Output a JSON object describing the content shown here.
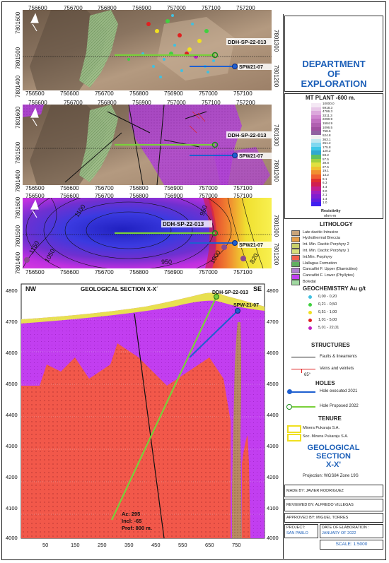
{
  "map1": {
    "top_ticks": [
      "756600",
      "756700",
      "756800",
      "756900",
      "757000",
      "757100",
      "757200"
    ],
    "bottom_ticks": [
      "756500",
      "756600",
      "756700",
      "756800",
      "756900",
      "757000",
      "757100"
    ],
    "left_ticks": [
      "7801600",
      "7801500",
      "7801400"
    ],
    "right_ticks": [
      "7801300",
      "7801200"
    ],
    "hole1_label": "DDH-SP-22-013",
    "hole2_label": "SPW21-07"
  },
  "map2": {
    "top_ticks": [
      "756600",
      "756700",
      "756800",
      "756900",
      "757000",
      "757100",
      "757200"
    ],
    "bottom_ticks": [
      "756500",
      "756600",
      "756700",
      "756800",
      "756900",
      "757000",
      "757100"
    ],
    "left_ticks": [
      "7801600",
      "7801500",
      "7801400"
    ],
    "right_ticks": [
      "7801300",
      "7801200"
    ],
    "hole1_label": "DDH-SP-22-013",
    "hole2_label": "SPW21-07"
  },
  "map3": {
    "top_ticks": [
      "756500",
      "756600",
      "756700",
      "756800",
      "756900",
      "757000",
      "757100"
    ],
    "bottom_ticks": [
      "756500",
      "756600",
      "756700",
      "756800",
      "756900",
      "757000",
      "757100"
    ],
    "left_ticks": [
      "7801600",
      "7801500",
      "7801400"
    ],
    "right_ticks": [
      "7801300",
      "7801200"
    ],
    "hole1_label": "DDH-SP-22-013",
    "hole2_label": "SPW21-07",
    "contour_labels": [
      "1150",
      "1100",
      "1050",
      "950",
      "1000",
      "950",
      "820"
    ]
  },
  "section": {
    "title": "GEOLOGICAL SECTION X-X´",
    "left_label": "NW",
    "right_label": "SE",
    "hole1_label": "DDH-SP-22-013",
    "hole2_label": "SPW-21-07",
    "y_ticks": [
      "4800",
      "4700",
      "4600",
      "4500",
      "4400",
      "4300",
      "4200",
      "4100",
      "4000"
    ],
    "x_ticks": [
      "50",
      "150",
      "250",
      "350",
      "450",
      "550",
      "650",
      "750"
    ],
    "annot_az": "Az: 295",
    "annot_incl": "Incl: -65",
    "annot_prof": "Prof: 800 m."
  },
  "legend": {
    "dept_line1": "DEPARTMENT",
    "dept_line2": "OF",
    "dept_line3": "EXPLORATION",
    "mt_title": "MT PLANT -600 m.",
    "mt_values": [
      "10000.0",
      "6918.3",
      "4786.3",
      "3311.3",
      "2290.9",
      "1584.9",
      "1096.5",
      "758.6",
      "524.8",
      "363.1",
      "251.2",
      "175.8",
      "120.2",
      "83.2",
      "57.5",
      "39.8",
      "27.5",
      "19.1",
      "13.2",
      "9.1",
      "6.3",
      "4.4",
      "3.0",
      "2.1",
      "1.4",
      "1.0"
    ],
    "mt_unit1": "Resistivity",
    "mt_unit2": "ohm-m",
    "lithology_title": "LITHOLOGY",
    "lithology": [
      {
        "label": "Late dacitic Intrusive",
        "color": "#c9a47a"
      },
      {
        "label": "Hydrothermal Breccia",
        "color": "#e8a04a"
      },
      {
        "label": "Int. Min. Dacitic Porphyry 2",
        "color": "#c8d06a"
      },
      {
        "label": "Int. Min. Dacitic Porphyry 1",
        "color": "#d8e07a"
      },
      {
        "label": "Int.Min. Porphyry",
        "color": "#f0604c"
      },
      {
        "label": "Llallagua Formation",
        "color": "#60b060"
      },
      {
        "label": "Cancañiri F. Upper (Diamictites)",
        "color": "#b080d0"
      },
      {
        "label": "Cancañiri F. Lower (Phyllytes)",
        "color": "#c040f0"
      },
      {
        "label": "Bofedal",
        "color": "#a0d8a0"
      }
    ],
    "geochem_title": "GEOCHEMISTRY  Au g/t",
    "geochem": [
      {
        "label": "0,00 - 0,20",
        "color": "#40c0e0"
      },
      {
        "label": "0,21 - 0,50",
        "color": "#40d040"
      },
      {
        "label": "0,51 - 1,00",
        "color": "#f0e020"
      },
      {
        "label": "1,01 - 5,00",
        "color": "#e02020"
      },
      {
        "label": "5,01 - 22,01",
        "color": "#c020c0"
      }
    ],
    "structures_title": "STRUCTURES",
    "faults_label": "Faults & lineaments",
    "veins_label": "Veins and veinlets",
    "dip_label": "65°",
    "holes_title": "HOLES",
    "hole_exec_label": "Hole executed 2021",
    "hole_prop_label": "Hole Proposed 2022",
    "tenure_title": "TENURE",
    "tenure1": "Minera Pukaraju S.A.",
    "tenure2": "Soc. Minera Pukaraju S.A.",
    "geo_title1": "GEOLOGICAL",
    "geo_title2": "SECTION",
    "geo_title3": "X-X'",
    "projection": "Projection: WGS84 Zone 19S",
    "made_by": "MADE BY: JAVIER RODRIGUEZ",
    "reviewed_by": "REVIEWED BY: ALFREDO VILLEGAS",
    "approved_by": "APPROVED BY: MIGUEL TORRES",
    "project_label": "PROJECT:",
    "project_value": "SAN PABLO",
    "date_label": "DATE OF ELABORATION :",
    "date_value": "JANUARY OF 2022",
    "scale": "SCALE: 1:5000"
  },
  "colors": {
    "accent": "#1c5fb8",
    "hole_exec": "#1e5fd0",
    "hole_prop": "#7ad03a"
  }
}
